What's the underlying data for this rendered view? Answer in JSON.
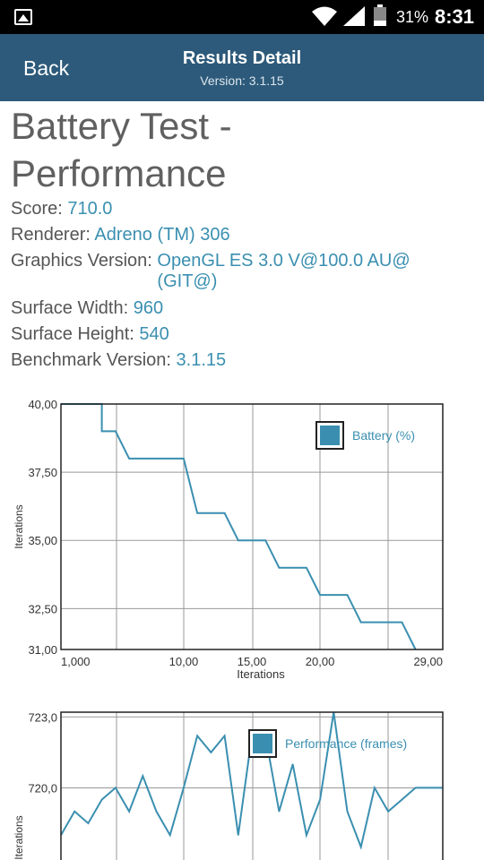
{
  "status_bar": {
    "battery_percent": "31%",
    "time": "8:31",
    "battery_level": 0.31
  },
  "header": {
    "back_label": "Back",
    "title": "Results Detail",
    "version": "Version: 3.1.15"
  },
  "test": {
    "title_line1": "Battery Test -",
    "title_line2": "Performance",
    "details": [
      {
        "label": "Score: ",
        "value": "710.0"
      },
      {
        "label": "Renderer: ",
        "value": "Adreno (TM) 306"
      },
      {
        "label": "Graphics Version: ",
        "value": "OpenGL ES 3.0 V@100.0 AU@ (GIT@)"
      },
      {
        "label": "Surface Width: ",
        "value": "960"
      },
      {
        "label": "Surface Height: ",
        "value": "540"
      },
      {
        "label": "Benchmark Version: ",
        "value": "3.1.15"
      }
    ]
  },
  "colors": {
    "line": "#3a8fb0",
    "appbar": "#2d5a7a"
  },
  "chart_data": [
    {
      "type": "line",
      "xlabel": "Iterations",
      "ylabel": "Iterations",
      "xticks": [
        "1,000",
        "10,00",
        "15,00",
        "20,00",
        "29,00"
      ],
      "xtick_values": [
        1,
        10,
        15,
        20,
        29
      ],
      "yticks": [
        "40,00",
        "37,50",
        "35,00",
        "32,50",
        "31,00"
      ],
      "ytick_values": [
        40,
        37.5,
        35,
        32.5,
        31
      ],
      "xlim": [
        1,
        29
      ],
      "ylim": [
        31,
        40
      ],
      "grid": true,
      "legend": "top-right",
      "series": [
        {
          "name": "Battery (%)",
          "x": [
            1,
            4,
            4,
            5,
            6,
            10,
            11,
            13,
            14,
            16,
            17,
            19,
            20,
            22,
            23,
            26,
            27
          ],
          "y": [
            40,
            40,
            39,
            39,
            38,
            38,
            36,
            36,
            35,
            35,
            34,
            34,
            33,
            33,
            32,
            32,
            31
          ]
        }
      ]
    },
    {
      "type": "line",
      "ylabel": "Iterations",
      "yticks": [
        "723,0",
        "720,0"
      ],
      "ytick_values": [
        723,
        720
      ],
      "xlim": [
        1,
        29
      ],
      "ylim": [
        716,
        723.2
      ],
      "grid": true,
      "legend": "top-right",
      "series": [
        {
          "name": "Performance (frames)",
          "x": [
            1,
            2,
            3,
            4,
            5,
            6,
            7,
            8,
            9,
            10,
            11,
            12,
            13,
            14,
            15,
            16,
            17,
            18,
            19,
            20,
            21,
            22,
            23,
            24,
            25,
            26,
            27,
            28,
            29
          ],
          "y": [
            718.0,
            719.0,
            718.5,
            719.5,
            720.0,
            719.0,
            720.5,
            719.0,
            718.0,
            720.0,
            722.2,
            721.5,
            722.2,
            718.0,
            722.2,
            722.2,
            719.0,
            721.0,
            718.0,
            719.5,
            723.2,
            719.0,
            717.5,
            720.0,
            719.0,
            719.5,
            720.0,
            720.0,
            720.0
          ]
        }
      ]
    }
  ]
}
